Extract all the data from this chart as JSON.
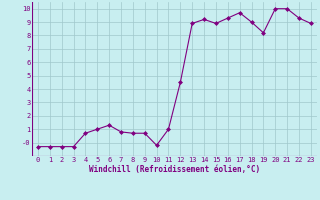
{
  "x": [
    0,
    1,
    2,
    3,
    4,
    5,
    6,
    7,
    8,
    9,
    10,
    11,
    12,
    13,
    14,
    15,
    16,
    17,
    18,
    19,
    20,
    21,
    22,
    23
  ],
  "y": [
    -0.3,
    -0.3,
    -0.3,
    -0.3,
    0.7,
    1.0,
    1.3,
    0.8,
    0.7,
    0.7,
    -0.2,
    1.0,
    4.5,
    8.9,
    9.2,
    8.9,
    9.3,
    9.7,
    9.0,
    8.2,
    10.0,
    10.0,
    9.3,
    8.9
  ],
  "line_color": "#800080",
  "marker": "D",
  "marker_size": 2.0,
  "background_color": "#c8eef0",
  "grid_color": "#a0c8cc",
  "xlabel": "Windchill (Refroidissement éolien,°C)",
  "xlabel_color": "#800080",
  "tick_color": "#800080",
  "ylim": [
    -1,
    10.5
  ],
  "xlim": [
    -0.5,
    23.5
  ],
  "yticks": [
    0,
    1,
    2,
    3,
    4,
    5,
    6,
    7,
    8,
    9,
    10
  ],
  "ytick_labels": [
    "-0",
    "1",
    "2",
    "3",
    "4",
    "5",
    "6",
    "7",
    "8",
    "9",
    "10"
  ],
  "xticks": [
    0,
    1,
    2,
    3,
    4,
    5,
    6,
    7,
    8,
    9,
    10,
    11,
    12,
    13,
    14,
    15,
    16,
    17,
    18,
    19,
    20,
    21,
    22,
    23
  ]
}
